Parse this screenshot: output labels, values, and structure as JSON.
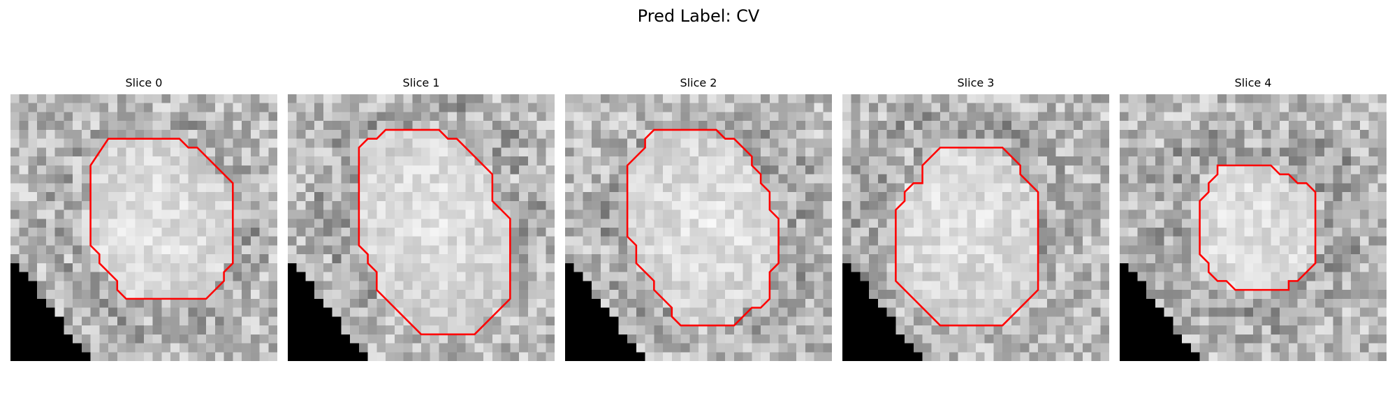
{
  "title": "Pred Label: CV",
  "panels": [
    {
      "label": "Slice 0",
      "contour": [
        [
          11,
          5
        ],
        [
          19,
          5
        ],
        [
          20,
          6
        ],
        [
          21,
          6
        ],
        [
          25,
          10
        ],
        [
          25,
          19
        ],
        [
          24,
          20
        ],
        [
          24,
          21
        ],
        [
          22,
          23
        ],
        [
          13,
          23
        ],
        [
          12,
          22
        ],
        [
          12,
          21
        ],
        [
          10,
          19
        ],
        [
          10,
          18
        ],
        [
          9,
          17
        ],
        [
          9,
          14
        ],
        [
          9,
          8
        ]
      ]
    },
    {
      "label": "Slice 1",
      "contour": [
        [
          10,
          5
        ],
        [
          11,
          4
        ],
        [
          17,
          4
        ],
        [
          18,
          5
        ],
        [
          19,
          5
        ],
        [
          21,
          7
        ],
        [
          23,
          9
        ],
        [
          23,
          10
        ],
        [
          23,
          12
        ],
        [
          24,
          13
        ],
        [
          25,
          14
        ],
        [
          25,
          23
        ],
        [
          21,
          27
        ],
        [
          15,
          27
        ],
        [
          10,
          22
        ],
        [
          10,
          20
        ],
        [
          9,
          19
        ],
        [
          9,
          18
        ],
        [
          8,
          17
        ],
        [
          8,
          6
        ],
        [
          9,
          5
        ]
      ]
    },
    {
      "label": "Slice 2",
      "contour": [
        [
          10,
          4
        ],
        [
          17,
          4
        ],
        [
          18,
          5
        ],
        [
          19,
          5
        ],
        [
          20,
          6
        ],
        [
          21,
          7
        ],
        [
          21,
          8
        ],
        [
          22,
          9
        ],
        [
          22,
          10
        ],
        [
          23,
          11
        ],
        [
          23,
          13
        ],
        [
          24,
          14
        ],
        [
          24,
          19
        ],
        [
          23,
          20
        ],
        [
          23,
          23
        ],
        [
          22,
          24
        ],
        [
          21,
          24
        ],
        [
          20,
          25
        ],
        [
          19,
          26
        ],
        [
          13,
          26
        ],
        [
          12,
          25
        ],
        [
          12,
          24
        ],
        [
          10,
          22
        ],
        [
          10,
          21
        ],
        [
          9,
          20
        ],
        [
          8,
          19
        ],
        [
          8,
          17
        ],
        [
          7,
          16
        ],
        [
          7,
          8
        ],
        [
          9,
          6
        ],
        [
          9,
          5
        ]
      ]
    },
    {
      "label": "Slice 3",
      "contour": [
        [
          11,
          6
        ],
        [
          18,
          6
        ],
        [
          20,
          8
        ],
        [
          20,
          9
        ],
        [
          22,
          11
        ],
        [
          22,
          22
        ],
        [
          18,
          26
        ],
        [
          11,
          26
        ],
        [
          6,
          21
        ],
        [
          6,
          13
        ],
        [
          7,
          12
        ],
        [
          7,
          11
        ],
        [
          8,
          10
        ],
        [
          9,
          10
        ],
        [
          9,
          8
        ]
      ]
    },
    {
      "label": "Slice 4",
      "contour": [
        [
          11,
          8
        ],
        [
          17,
          8
        ],
        [
          18,
          9
        ],
        [
          19,
          9
        ],
        [
          20,
          10
        ],
        [
          21,
          10
        ],
        [
          22,
          11
        ],
        [
          22,
          19
        ],
        [
          21,
          20
        ],
        [
          20,
          21
        ],
        [
          19,
          21
        ],
        [
          19,
          22
        ],
        [
          13,
          22
        ],
        [
          12,
          21
        ],
        [
          11,
          21
        ],
        [
          10,
          20
        ],
        [
          10,
          19
        ],
        [
          9,
          18
        ],
        [
          9,
          13
        ],
        [
          9,
          12
        ],
        [
          10,
          11
        ],
        [
          10,
          10
        ],
        [
          11,
          9
        ]
      ]
    }
  ],
  "colors": {
    "contour": "#ff0000",
    "mask": "#000000"
  }
}
